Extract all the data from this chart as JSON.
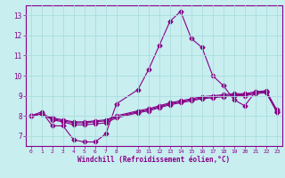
{
  "title": "",
  "xlabel": "Windchill (Refroidissement éolien,°C)",
  "background_color": "#c8eef0",
  "grid_color": "#aadddd",
  "line_color": "#880088",
  "xlim": [
    -0.5,
    23.5
  ],
  "ylim": [
    6.5,
    13.5
  ],
  "xtick_positions": [
    0,
    1,
    2,
    3,
    4,
    5,
    6,
    7,
    8,
    10,
    11,
    12,
    13,
    14,
    15,
    16,
    17,
    18,
    19,
    20,
    21,
    22,
    23
  ],
  "xtick_labels": [
    "0",
    "1",
    "2",
    "3",
    "4",
    "5",
    "6",
    "7",
    "8",
    "10",
    "11",
    "12",
    "13",
    "14",
    "15",
    "16",
    "17",
    "18",
    "19",
    "20",
    "21",
    "22",
    "23"
  ],
  "ytick_positions": [
    7,
    8,
    9,
    10,
    11,
    12,
    13
  ],
  "ytick_labels": [
    "7",
    "8",
    "9",
    "10",
    "11",
    "12",
    "13"
  ],
  "line1_x": [
    0,
    1,
    2,
    3,
    4,
    5,
    6,
    7,
    8,
    10,
    11,
    12,
    13,
    14,
    15,
    16,
    17,
    18,
    19,
    20,
    21,
    22,
    23
  ],
  "line1_y": [
    8.0,
    8.2,
    7.5,
    7.5,
    6.8,
    6.7,
    6.7,
    7.1,
    8.6,
    9.3,
    10.3,
    11.5,
    12.7,
    13.2,
    11.85,
    11.4,
    10.0,
    9.5,
    8.8,
    8.5,
    9.2,
    9.2,
    8.2
  ],
  "line2_x": [
    0,
    1,
    2,
    3,
    4,
    5,
    6,
    7,
    8,
    10,
    11,
    12,
    13,
    14,
    15,
    16,
    17,
    18,
    19,
    20,
    21,
    22,
    23
  ],
  "line2_y": [
    8.0,
    8.1,
    7.8,
    7.7,
    7.55,
    7.55,
    7.6,
    7.65,
    7.9,
    8.15,
    8.25,
    8.4,
    8.55,
    8.65,
    8.75,
    8.85,
    8.9,
    8.95,
    9.0,
    9.0,
    9.1,
    9.15,
    8.2
  ],
  "line3_x": [
    0,
    1,
    2,
    3,
    4,
    5,
    6,
    7,
    8,
    10,
    11,
    12,
    13,
    14,
    15,
    16,
    17,
    18,
    19,
    20,
    21,
    22,
    23
  ],
  "line3_y": [
    8.0,
    8.1,
    7.85,
    7.75,
    7.65,
    7.65,
    7.7,
    7.75,
    7.95,
    8.2,
    8.3,
    8.45,
    8.6,
    8.7,
    8.8,
    8.9,
    8.95,
    9.0,
    9.05,
    9.05,
    9.15,
    9.2,
    8.25
  ],
  "line4_x": [
    0,
    1,
    2,
    3,
    4,
    5,
    6,
    7,
    8,
    10,
    11,
    12,
    13,
    14,
    15,
    16,
    17,
    18,
    19,
    20,
    21,
    22,
    23
  ],
  "line4_y": [
    8.0,
    8.1,
    7.9,
    7.8,
    7.7,
    7.7,
    7.75,
    7.8,
    8.0,
    8.25,
    8.35,
    8.5,
    8.65,
    8.75,
    8.85,
    8.95,
    9.0,
    9.05,
    9.1,
    9.1,
    9.2,
    9.25,
    8.3
  ]
}
